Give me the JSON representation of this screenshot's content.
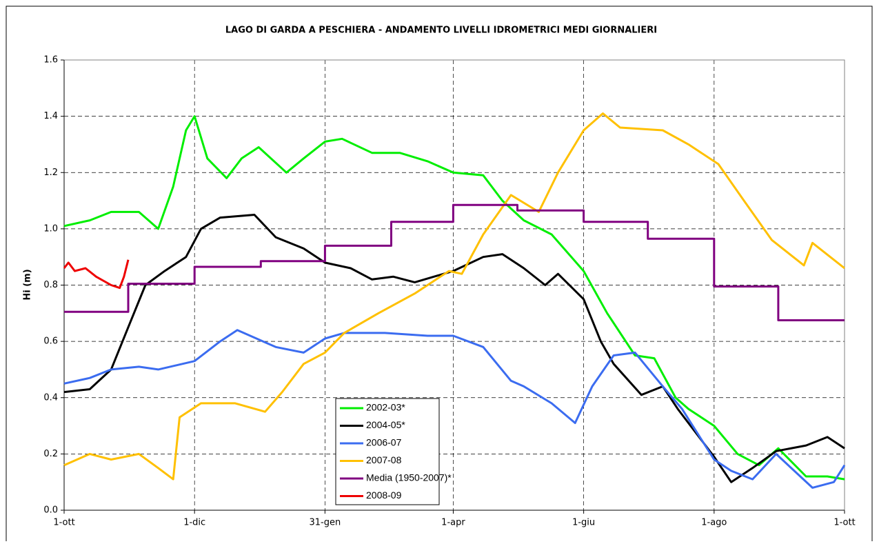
{
  "chart_data": {
    "type": "line",
    "title": "LAGO DI GARDA A PESCHIERA - ANDAMENTO LIVELLI IDROMETRICI MEDI GIORNALIERI",
    "ylabel": "Hi (m)",
    "xlim": [
      0,
      365
    ],
    "xticks": [
      {
        "value": 0,
        "label": "1-ott"
      },
      {
        "value": 61,
        "label": "1-dic"
      },
      {
        "value": 122,
        "label": "31-gen"
      },
      {
        "value": 182,
        "label": "1-apr"
      },
      {
        "value": 243,
        "label": "1-giu"
      },
      {
        "value": 304,
        "label": "1-ago"
      },
      {
        "value": 365,
        "label": "1-ott"
      }
    ],
    "ylim": [
      0,
      1.6
    ],
    "yticks": [
      {
        "value": 0,
        "label": "0.0"
      },
      {
        "value": 0.2,
        "label": "0.2"
      },
      {
        "value": 0.4,
        "label": "0.4"
      },
      {
        "value": 0.6,
        "label": "0.6"
      },
      {
        "value": 0.8,
        "label": "0.8"
      },
      {
        "value": 1,
        "label": "1.0"
      },
      {
        "value": 1.2,
        "label": "1.2"
      },
      {
        "value": 1.4,
        "label": "1.4"
      },
      {
        "value": 1.6,
        "label": "1.6"
      }
    ],
    "grid": true,
    "series": [
      {
        "name": "2002-03*",
        "color": "#00ee00",
        "x": [
          0,
          12,
          22,
          35,
          44,
          51,
          57,
          61,
          67,
          76,
          83,
          91,
          104,
          112,
          122,
          130,
          144,
          157,
          170,
          182,
          196,
          205,
          215,
          228,
          243,
          254,
          267,
          276,
          286,
          292,
          304,
          315,
          325,
          334,
          347,
          357,
          365
        ],
        "values": [
          1.01,
          1.03,
          1.06,
          1.06,
          1.0,
          1.15,
          1.35,
          1.4,
          1.25,
          1.18,
          1.25,
          1.29,
          1.2,
          1.25,
          1.31,
          1.32,
          1.27,
          1.27,
          1.24,
          1.2,
          1.19,
          1.1,
          1.03,
          0.98,
          0.85,
          0.7,
          0.55,
          0.54,
          0.4,
          0.36,
          0.3,
          0.2,
          0.16,
          0.22,
          0.12,
          0.12,
          0.11
        ]
      },
      {
        "name": "2004-05*",
        "color": "#000000",
        "x": [
          0,
          12,
          22,
          30,
          38,
          47,
          57,
          64,
          73,
          89,
          99,
          112,
          122,
          134,
          144,
          154,
          164,
          182,
          196,
          205,
          215,
          225,
          231,
          243,
          251,
          257,
          270,
          280,
          287,
          304,
          312,
          322,
          333,
          347,
          357,
          365
        ],
        "values": [
          0.42,
          0.43,
          0.5,
          0.65,
          0.8,
          0.85,
          0.9,
          1.0,
          1.04,
          1.05,
          0.97,
          0.93,
          0.88,
          0.86,
          0.82,
          0.83,
          0.81,
          0.85,
          0.9,
          0.91,
          0.86,
          0.8,
          0.84,
          0.75,
          0.6,
          0.52,
          0.41,
          0.44,
          0.36,
          0.19,
          0.1,
          0.15,
          0.21,
          0.23,
          0.26,
          0.22
        ]
      },
      {
        "name": "2006-07",
        "color": "#3b6cf0",
        "x": [
          0,
          12,
          22,
          35,
          44,
          61,
          73,
          81,
          99,
          112,
          122,
          131,
          150,
          170,
          182,
          196,
          209,
          215,
          228,
          239,
          247,
          257,
          267,
          280,
          289,
          304,
          312,
          322,
          333,
          350,
          360,
          365
        ],
        "values": [
          0.45,
          0.47,
          0.5,
          0.51,
          0.5,
          0.53,
          0.6,
          0.64,
          0.58,
          0.56,
          0.61,
          0.63,
          0.63,
          0.62,
          0.62,
          0.58,
          0.46,
          0.44,
          0.38,
          0.31,
          0.44,
          0.55,
          0.56,
          0.44,
          0.36,
          0.18,
          0.14,
          0.11,
          0.2,
          0.08,
          0.1,
          0.16
        ]
      },
      {
        "name": "2007-08",
        "color": "#ffc000",
        "x": [
          0,
          12,
          22,
          35,
          44,
          51,
          54,
          64,
          80,
          94,
          102,
          112,
          122,
          131,
          147,
          164,
          180,
          186,
          196,
          209,
          222,
          231,
          243,
          252,
          260,
          280,
          292,
          306,
          318,
          331,
          346,
          350,
          365
        ],
        "values": [
          0.16,
          0.2,
          0.18,
          0.2,
          0.15,
          0.11,
          0.33,
          0.38,
          0.38,
          0.35,
          0.42,
          0.52,
          0.56,
          0.63,
          0.7,
          0.77,
          0.85,
          0.84,
          0.98,
          1.12,
          1.06,
          1.2,
          1.35,
          1.41,
          1.36,
          1.35,
          1.3,
          1.23,
          1.1,
          0.96,
          0.87,
          0.95,
          0.86
        ]
      },
      {
        "name": "Media (1950-2007)*",
        "color": "#800080",
        "x": [
          0,
          30,
          30,
          61,
          61,
          92,
          92,
          122,
          122,
          153,
          153,
          182,
          182,
          212,
          212,
          243,
          243,
          273,
          273,
          304,
          304,
          334,
          334,
          365
        ],
        "values": [
          0.705,
          0.705,
          0.805,
          0.805,
          0.865,
          0.865,
          0.885,
          0.885,
          0.94,
          0.94,
          1.025,
          1.025,
          1.085,
          1.085,
          1.065,
          1.065,
          1.025,
          1.025,
          0.965,
          0.965,
          0.795,
          0.795,
          0.675,
          0.675
        ]
      },
      {
        "name": "2008-09",
        "color": "#ee0000",
        "x": [
          0,
          2,
          5,
          10,
          15,
          22,
          26,
          28,
          30
        ],
        "values": [
          0.86,
          0.88,
          0.85,
          0.86,
          0.83,
          0.8,
          0.79,
          0.83,
          0.89
        ]
      }
    ]
  }
}
